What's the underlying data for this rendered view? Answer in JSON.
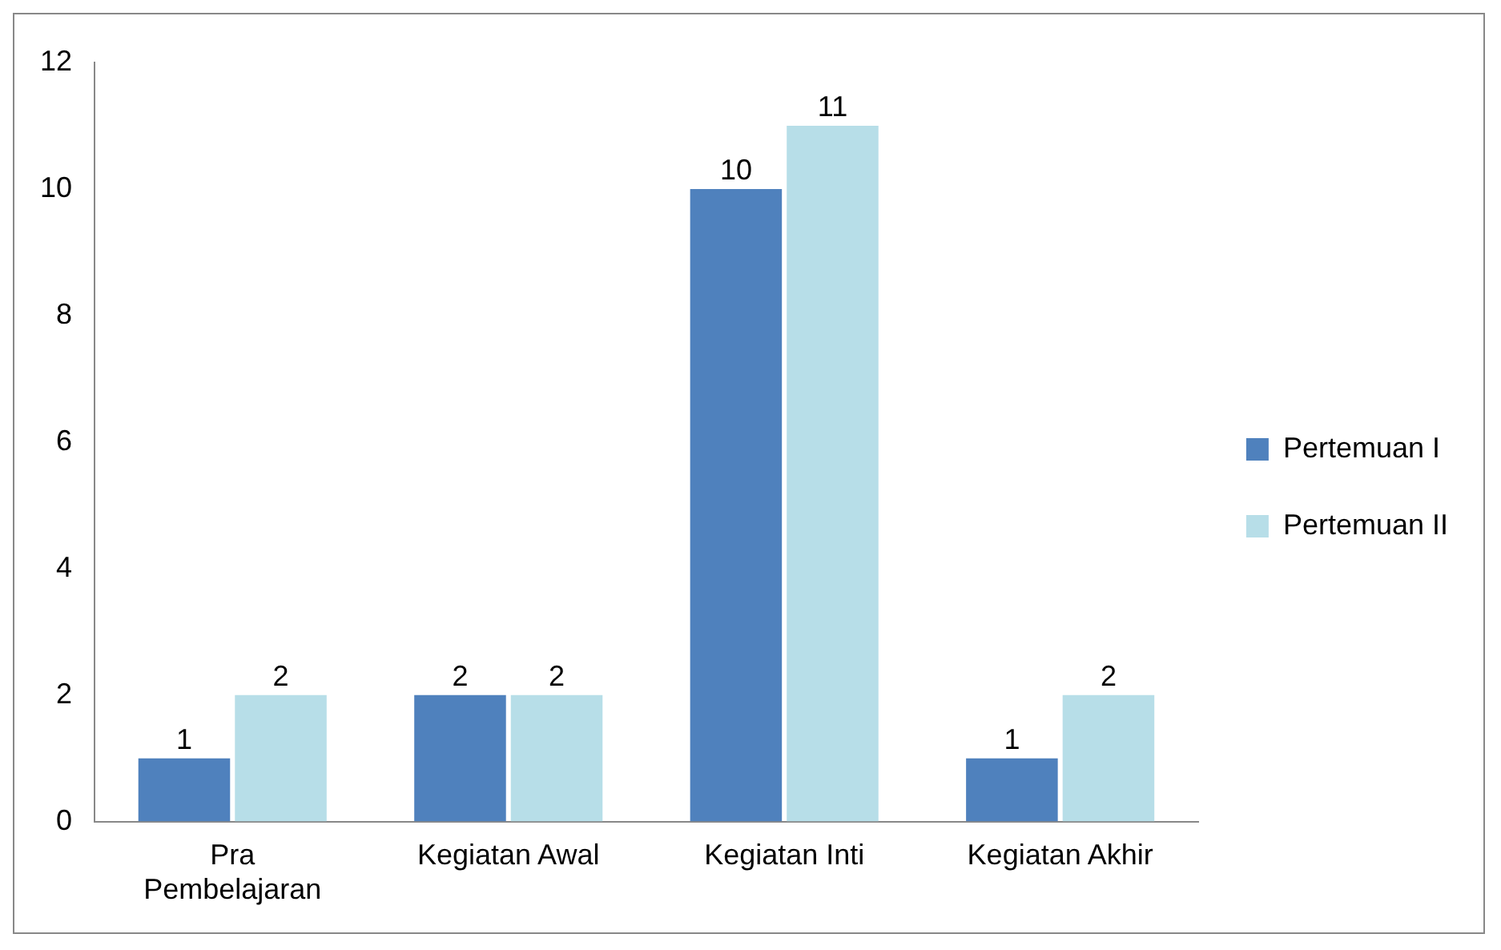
{
  "chart_data": {
    "type": "bar",
    "categories": [
      "Pra Pembelajaran",
      "Kegiatan Awal",
      "Kegiatan Inti",
      "Kegiatan Akhir"
    ],
    "series": [
      {
        "name": "Pertemuan I",
        "color": "#4f81bd",
        "values": [
          1,
          2,
          10,
          1
        ]
      },
      {
        "name": "Pertemuan II",
        "color": "#b7dee8",
        "values": [
          2,
          2,
          11,
          2
        ]
      }
    ],
    "ylim": [
      0,
      12
    ],
    "yticks": [
      0,
      2,
      4,
      6,
      8,
      10,
      12
    ],
    "grid": false,
    "legend": "right",
    "data_labels": true
  }
}
